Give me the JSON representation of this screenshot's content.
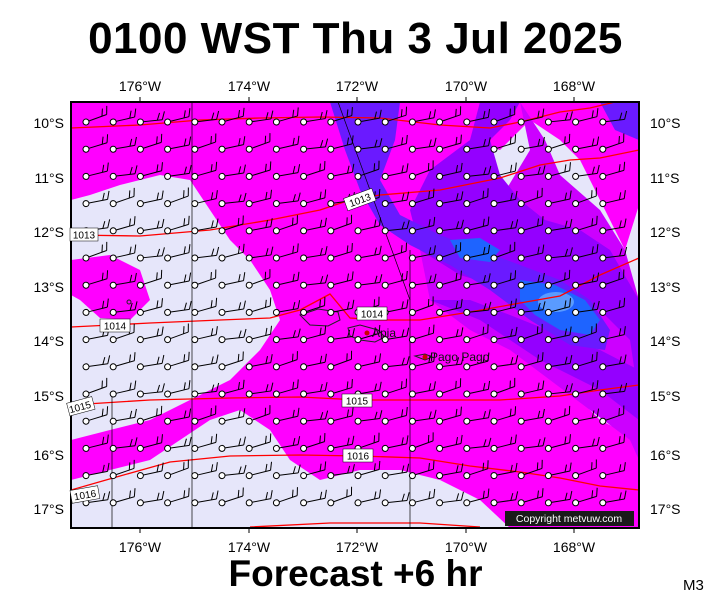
{
  "header": {
    "title": "0100 WST Thu 3 Jul 2025"
  },
  "footer": {
    "subtitle": "Forecast +6 hr",
    "model": "M3"
  },
  "map": {
    "lon_ticks": [
      "176°W",
      "174°W",
      "172°W",
      "170°W",
      "168°W"
    ],
    "lat_ticks": [
      "10°S",
      "11°S",
      "12°S",
      "13°S",
      "14°S",
      "15°S",
      "16°S",
      "17°S"
    ],
    "cities": [
      {
        "name": "Apia"
      },
      {
        "name": "Pago Pago"
      }
    ],
    "isobar_labels": [
      "1013",
      "1013",
      "1014",
      "1014",
      "1015",
      "1015",
      "1016",
      "1016"
    ],
    "copyright": "Copyright metvuw.com",
    "colors": {
      "rain_light": "#e6e6fa",
      "rain_moderate": "#ff00ff",
      "rain_heavy": "#cc00ff",
      "rain_very_heavy": "#9400ff",
      "rain_extreme": "#6a1aff",
      "rain_max": "#1e64ff",
      "isobar": "#ff0000"
    }
  }
}
